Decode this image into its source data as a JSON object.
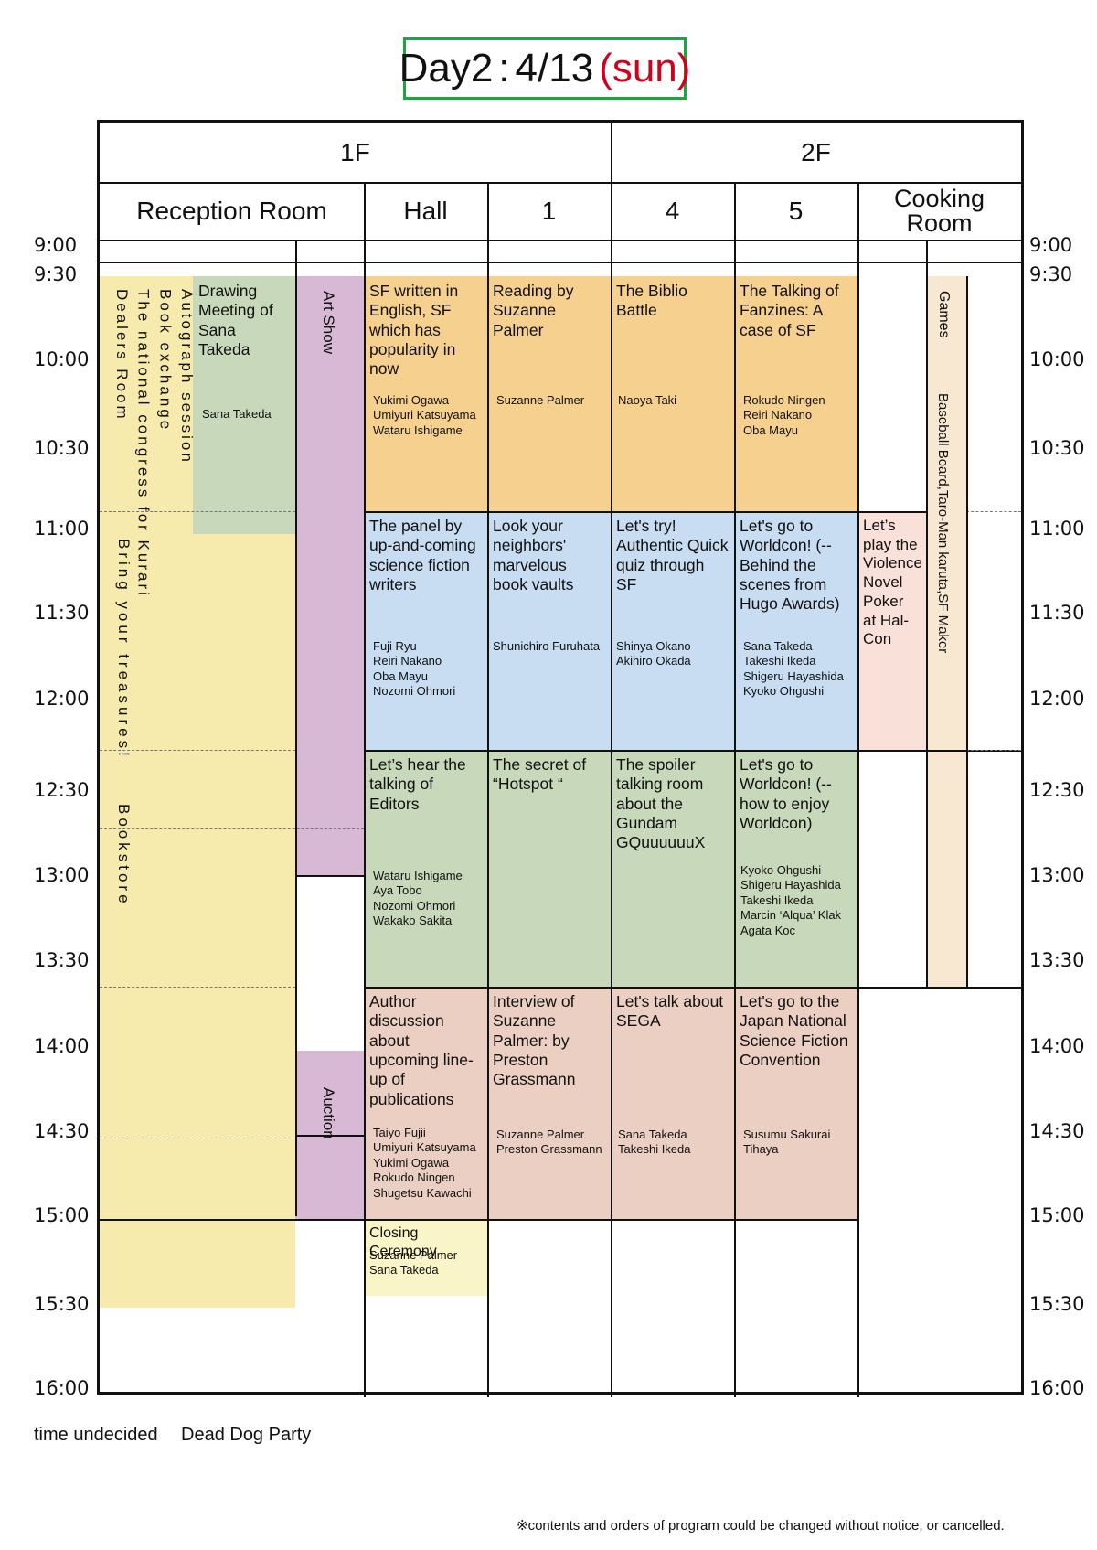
{
  "title": {
    "day": "Day2",
    "sep": ":",
    "date": "4/13",
    "dow": "(sun)"
  },
  "floors": {
    "f1": "1F",
    "f2": "2F"
  },
  "rooms": {
    "reception": "Reception Room",
    "hall": "Hall",
    "r1": "1",
    "r4": "4",
    "r5": "5",
    "cooking": "Cooking\nRoom"
  },
  "times": [
    "9:00",
    "9:30",
    "10:00",
    "10:30",
    "11:00",
    "11:30",
    "12:00",
    "12:30",
    "13:00",
    "13:30",
    "14:00",
    "14:30",
    "15:00",
    "15:30",
    "16:00"
  ],
  "reception": {
    "col1": "Autograph session\nBook exchange\nThe national congress for Kurari\nDealers Room",
    "bring": "Bring your treasures!",
    "bookstore": "Bookstore",
    "drawing": {
      "title": "Drawing Meeting of Sana Takeda",
      "people": "Sana Takeda"
    }
  },
  "artshow": "Art Show",
  "auction": "Auction",
  "games": "Games",
  "games_sub": "Baseball Board,Taro-Man karuta,SF Maker",
  "sessions": {
    "hall_1": {
      "title": "SF written in English, SF which has popularity in now",
      "people": "Yukimi Ogawa\nUmiyuri Katsuyama\nWataru Ishigame"
    },
    "r1_1": {
      "title": "Reading by Suzanne Palmer",
      "people": "Suzanne Palmer"
    },
    "r4_1": {
      "title": "The Biblio Battle",
      "people": "Naoya Taki"
    },
    "r5_1": {
      "title": "The Talking of Fanzines: A case of SF",
      "people": "Rokudo Ningen\nReiri Nakano\nOba Mayu"
    },
    "hall_2": {
      "title": "The panel by up-and-coming science fiction writers",
      "people": "Fuji Ryu\nReiri Nakano\nOba Mayu\nNozomi Ohmori"
    },
    "r1_2": {
      "title": "Look your neighbors' marvelous book vaults",
      "people": "Shunichiro Furuhata"
    },
    "r4_2": {
      "title": "Let's try! Authentic Quick quiz through SF",
      "people": "Shinya Okano\nAkihiro Okada"
    },
    "r5_2": {
      "title": "Let's go to Worldcon! (--Behind the scenes from Hugo Awards)",
      "people": "Sana Takeda\nTakeshi Ikeda\nShigeru Hayashida\nKyoko Ohgushi"
    },
    "cook_2": {
      "title": "Let’s play the Violence Novel Poker at Hal-Con"
    },
    "hall_3": {
      "title": "Let’s hear the talking of Editors",
      "people": "Wataru Ishigame\nAya Tobo\nNozomi Ohmori\nWakako Sakita"
    },
    "r1_3": {
      "title": "The secret of “Hotspot “"
    },
    "r4_3": {
      "title": "The spoiler talking room about the Gundam GQuuuuuuX"
    },
    "r5_3": {
      "title": "Let's go to Worldcon! (--how to enjoy Worldcon)",
      "people": "Kyoko Ohgushi\nShigeru Hayashida\nTakeshi Ikeda\nMarcin ‘Alqua’ Klak\nAgata Koc"
    },
    "hall_4": {
      "title": "Author discussion about upcoming line-up of publications",
      "people": "Taiyo Fujii\nUmiyuri Katsuyama\nYukimi Ogawa\nRokudo Ningen\nShugetsu Kawachi"
    },
    "r1_4": {
      "title": "Interview of Suzanne Palmer: by Preston Grassmann",
      "people": "Suzanne Palmer\nPreston Grassmann"
    },
    "r4_4": {
      "title": "Let's talk about SEGA",
      "people": "Sana Takeda\nTakeshi Ikeda"
    },
    "r5_4": {
      "title": "Let's go to the Japan National Science Fiction Convention",
      "people": "Susumu Sakurai\nTihaya"
    },
    "closing": {
      "title": "Closing Ceremony",
      "people": "Suzanne Palmer\nSana Takeda"
    }
  },
  "footer": {
    "undecided": "time undecided",
    "party": "Dead Dog Party",
    "note": "※contents and orders of program could be changed without notice, or cancelled."
  }
}
